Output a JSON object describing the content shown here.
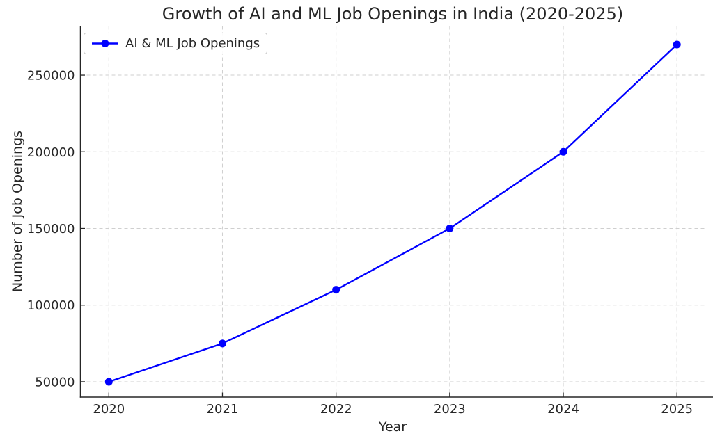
{
  "chart_data": {
    "type": "line",
    "title": "Growth of AI and ML Job Openings in India (2020-2025)",
    "xlabel": "Year",
    "ylabel": "Number of Job Openings",
    "x": [
      2020,
      2021,
      2022,
      2023,
      2024,
      2025
    ],
    "series": [
      {
        "name": "AI & ML Job Openings",
        "values": [
          50000,
          75000,
          110000,
          150000,
          200000,
          270000
        ],
        "color": "#0000ff",
        "marker": "circle"
      }
    ],
    "xticks": [
      2020,
      2021,
      2022,
      2023,
      2024,
      2025
    ],
    "yticks": [
      50000,
      100000,
      150000,
      200000,
      250000
    ],
    "xlim": [
      2019.75,
      2025.25
    ],
    "ylim": [
      40000,
      282000
    ],
    "grid": true,
    "grid_style": "dashed",
    "legend_position": "upper-left"
  },
  "styles": {
    "line_color": "#0000ff",
    "grid_color": "#cfcfcf",
    "spine_color": "#262626",
    "tick_color": "#262626",
    "text_color": "#262626",
    "legend_border_color": "#cccccc",
    "background": "#ffffff"
  }
}
